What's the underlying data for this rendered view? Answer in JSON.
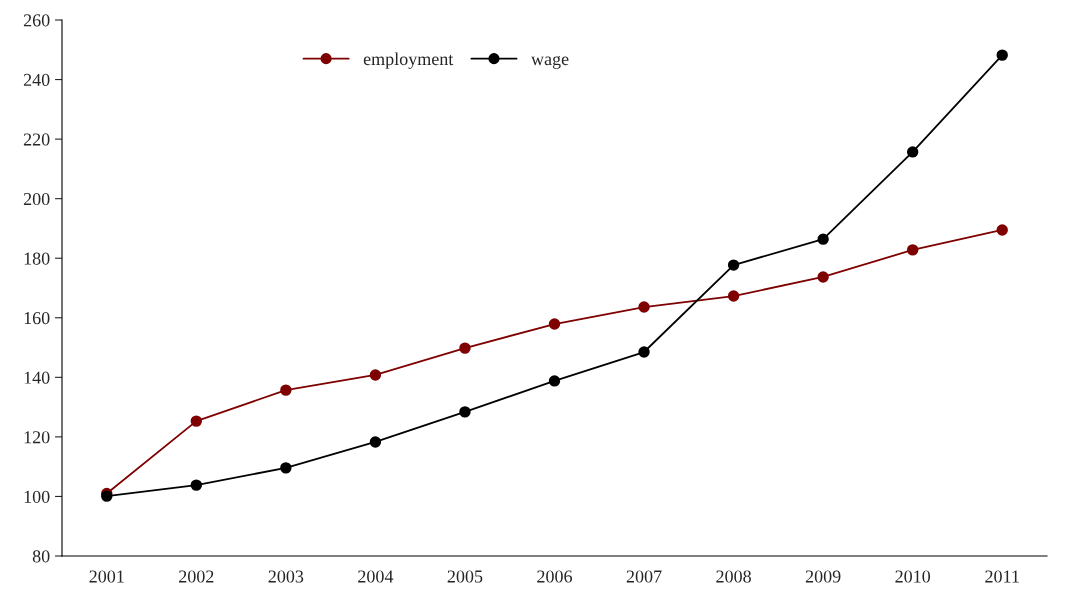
{
  "chart_data": {
    "type": "line",
    "categories": [
      "2001",
      "2002",
      "2003",
      "2004",
      "2005",
      "2006",
      "2007",
      "2008",
      "2009",
      "2010",
      "2011"
    ],
    "series": [
      {
        "name": "employment",
        "color": "#7f0000",
        "values": [
          101,
          125.3,
          135.7,
          140.8,
          149.8,
          157.9,
          163.6,
          167.3,
          173.7,
          182.8,
          189.5
        ]
      },
      {
        "name": "wage",
        "color": "#000000",
        "values": [
          100.1,
          103.8,
          109.6,
          118.3,
          128.4,
          138.8,
          148.5,
          177.7,
          186.4,
          215.7,
          248.2
        ]
      }
    ],
    "ylim": [
      80,
      260
    ],
    "yticks": [
      80,
      100,
      120,
      140,
      160,
      180,
      200,
      220,
      240,
      260
    ],
    "marker": "circle",
    "line_style": "solid",
    "grid": false,
    "legend": "top"
  }
}
